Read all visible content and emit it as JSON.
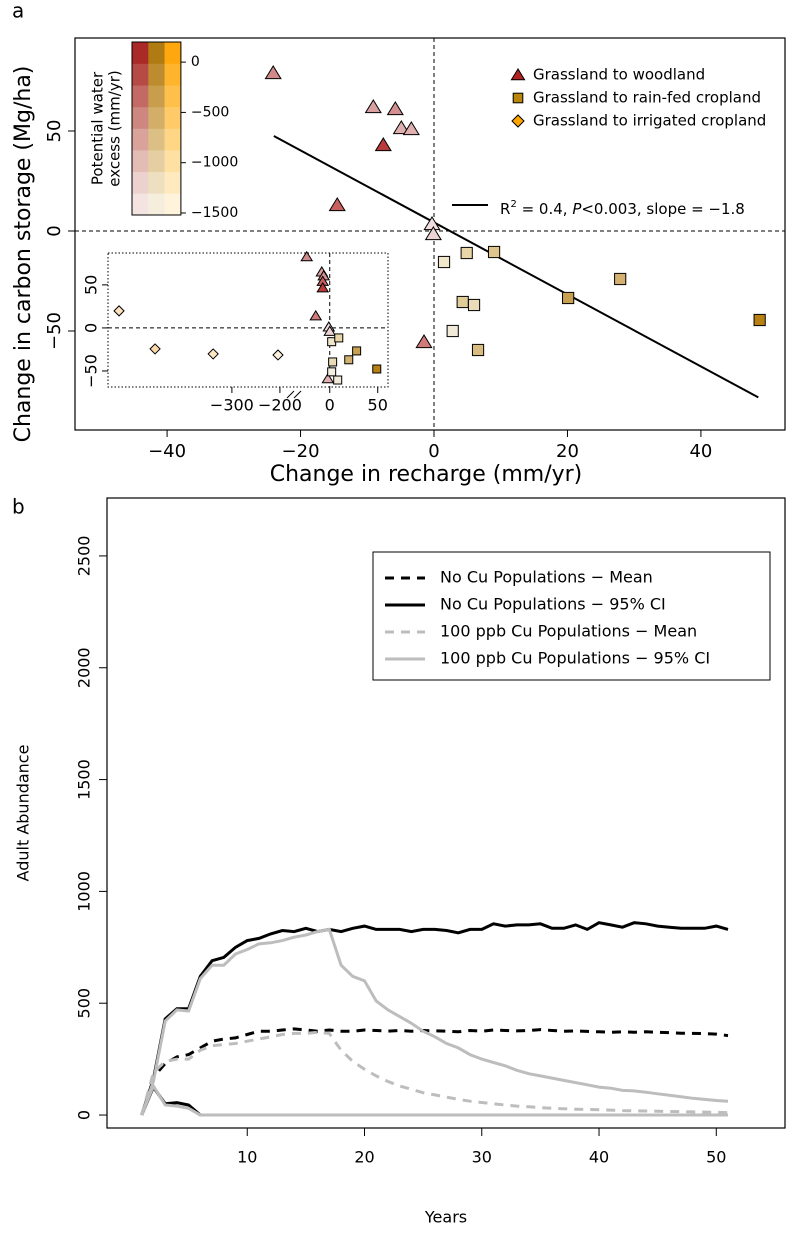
{
  "chart_data": [
    {
      "type": "scatter",
      "panel_label": "a",
      "xlabel": "Change in recharge (mm/yr)",
      "ylabel": "Change in carbon storage (Mg/ha)",
      "xlim": [
        -53.8,
        52.6
      ],
      "ylim": [
        -99.5,
        96.5
      ],
      "xticks": [
        {
          "value": -40,
          "label": "−40"
        },
        {
          "value": -20,
          "label": "−20"
        },
        0,
        20,
        40
      ],
      "yticks": [
        {
          "value": -50,
          "label": "−50"
        },
        0,
        50
      ],
      "zero_lines": true,
      "legend_position": "top-right",
      "series": [
        {
          "name": "Grassland to woodland",
          "marker": "triangle",
          "color": "#b22222",
          "x": [
            -24.1,
            -9.1,
            -5.8,
            -4.9,
            -3.4,
            -7.6,
            -14.5,
            -0.3,
            -0.1,
            -1.5
          ],
          "y": [
            79,
            62,
            61,
            51.5,
            51,
            43,
            13,
            3.5,
            -1.5,
            -55.5
          ],
          "colors": [
            "#d08a8a",
            "#d8a0a0",
            "#d49090",
            "#e0b0b0",
            "#e0b0b0",
            "#b83a3a",
            "#c86060",
            "#f0dede",
            "#ecd4d4",
            "#d07a7a"
          ]
        },
        {
          "name": "Grassland to rain-fed cropland",
          "marker": "square",
          "color": "#b8860b",
          "x": [
            1.5,
            4.9,
            9,
            4.3,
            6,
            2.8,
            6.6,
            20.1,
            27.9,
            48.8
          ],
          "y": [
            -15.5,
            -11,
            -10.5,
            -35.5,
            -37,
            -50,
            -59.5,
            -33.5,
            -24,
            -44.5
          ],
          "colors": [
            "#f0e6cc",
            "#e8d6a8",
            "#dcc48a",
            "#e0cc98",
            "#eadcb8",
            "#f2ead8",
            "#d8bc80",
            "#c8a050",
            "#d4b070",
            "#b88010"
          ]
        },
        {
          "name": "Grassland to irrigated cropland",
          "marker": "diamond",
          "color": "#ffa500",
          "x": [],
          "y": [],
          "colors": []
        }
      ],
      "fit": {
        "x": [
          -24,
          48.6
        ],
        "y": [
          47.5,
          -83.2
        ],
        "label_parts": [
          {
            "text": "R"
          },
          {
            "text": "2",
            "style": "sup"
          },
          {
            "text": " = 0.4, "
          },
          {
            "text": "P",
            "style": "italic"
          },
          {
            "text": "<0.003, slope = −1.8"
          }
        ]
      },
      "colorbar": {
        "title": [
          "Potential water",
          "excess (mm/yr)"
        ],
        "lim": [
          -1520,
          200
        ],
        "ticks": [
          0,
          {
            "value": -500,
            "label": "−500"
          },
          {
            "value": -1000,
            "label": "−1000"
          },
          {
            "value": -1500,
            "label": "−1500"
          }
        ],
        "columns": [
          [
            "#f3e4e1",
            "#ecd2ce",
            "#e3bcb6",
            "#d9a39c",
            "#cd8780",
            "#c26a63",
            "#b64b45",
            "#aa2a27"
          ],
          [
            "#f6eedd",
            "#eedfc0",
            "#e5cfa2",
            "#dcbf85",
            "#d2ae68",
            "#c89d4b",
            "#bd8c2e",
            "#b07b12"
          ],
          [
            "#fff3dc",
            "#ffeac0",
            "#ffe0a3",
            "#ffd686",
            "#ffcb69",
            "#ffc04b",
            "#ffb42d",
            "#ffa70f"
          ]
        ]
      },
      "inset": {
        "xlim": [
          [
            -558,
            -179
          ],
          [
            -31,
            60.7
          ]
        ],
        "ylim": [
          -68.6,
          87
        ],
        "xticks": [
          {
            "value": -300,
            "label": "−300"
          },
          {
            "value": -200,
            "label": "−200"
          },
          0,
          50
        ],
        "yticks": [
          {
            "value": -50,
            "label": "−50"
          },
          0,
          50
        ],
        "series": [
          {
            "marker": "diamond",
            "x": [
              -535,
              -460,
              -339,
              -204
            ],
            "y": [
              19.8,
              -24.4,
              -30.2,
              -31.4
            ],
            "colors": [
              "#fde2bd",
              "#fbd9a8",
              "#fde6c6",
              "#fdf0dc"
            ]
          },
          {
            "marker": "triangle",
            "x": [
              -24,
              -8.3,
              -6.3,
              -7.3,
              -7.3,
              -14.6,
              -1,
              0,
              -2
            ],
            "y": [
              82.6,
              65,
              60.5,
              54,
              46.5,
              14,
              1,
              -4,
              -59
            ],
            "colors": [
              "#d08a8a",
              "#d8a0a0",
              "#d49090",
              "#c86060",
              "#b83a3a",
              "#d07a7a",
              "#f0dede",
              "#ecd4d4",
              "#e0b0b0"
            ]
          },
          {
            "marker": "square",
            "x": [
              2,
              9.4,
              28,
              19.8,
              3,
              8.3,
              49,
              2
            ],
            "y": [
              -16,
              -11.6,
              -26.7,
              -37,
              -39.5,
              -60.5,
              -47.7,
              -51
            ],
            "colors": [
              "#f0e6cc",
              "#e8d6a8",
              "#c8a050",
              "#d4b070",
              "#eadcb8",
              "#f2ead8",
              "#b88010",
              "#f5efe2"
            ]
          }
        ]
      }
    },
    {
      "type": "line",
      "panel_label": "b",
      "xlabel": "Years",
      "ylabel": "Adult Abundance",
      "xlim": [
        -1.96,
        55.86
      ],
      "ylim": [
        -58,
        2759
      ],
      "xticks": [
        10,
        20,
        30,
        40,
        50
      ],
      "yticks": [
        0,
        500,
        1000,
        1500,
        2000,
        2500
      ],
      "legend_position": "top-right",
      "x": [
        1,
        2,
        3,
        4,
        5,
        6,
        7,
        8,
        9,
        10,
        11,
        12,
        13,
        14,
        15,
        16,
        17,
        18,
        19,
        20,
        21,
        22,
        23,
        24,
        25,
        26,
        27,
        28,
        29,
        30,
        31,
        32,
        33,
        34,
        35,
        36,
        37,
        38,
        39,
        40,
        41,
        42,
        43,
        44,
        45,
        46,
        47,
        48,
        49,
        50,
        51
      ],
      "series": [
        {
          "name": "No Cu Populations − Mean",
          "color": "#000000",
          "dash": true,
          "values": [
            0,
            170,
            230,
            260,
            270,
            300,
            330,
            340,
            345,
            360,
            375,
            375,
            380,
            385,
            380,
            375,
            380,
            375,
            375,
            380,
            378,
            375,
            378,
            375,
            378,
            376,
            375,
            372,
            378,
            375,
            380,
            378,
            376,
            378,
            382,
            378,
            375,
            376,
            374,
            372,
            370,
            372,
            370,
            372,
            370,
            368,
            366,
            365,
            364,
            362,
            355
          ]
        },
        {
          "name": "No Cu Populations − 95% CI",
          "color": "#000000",
          "dash": false,
          "values": [
            0,
            160,
            430,
            475,
            475,
            620,
            690,
            705,
            750,
            780,
            790,
            810,
            825,
            820,
            835,
            820,
            830,
            820,
            835,
            845,
            830,
            830,
            830,
            820,
            830,
            830,
            825,
            815,
            830,
            830,
            855,
            845,
            850,
            850,
            855,
            835,
            835,
            850,
            830,
            860,
            850,
            840,
            860,
            855,
            845,
            840,
            835,
            835,
            835,
            845,
            830
          ],
          "lower": [
            0,
            125,
            50,
            55,
            45,
            0,
            0,
            0,
            0,
            0,
            0,
            0,
            0,
            0,
            0,
            0,
            0,
            0,
            0,
            0,
            0,
            0,
            0,
            0,
            0,
            0,
            0,
            0,
            0,
            0,
            0,
            0,
            0,
            0,
            0,
            0,
            0,
            0,
            0,
            0,
            0,
            0,
            0,
            0,
            0,
            0,
            0,
            0,
            0,
            0,
            0
          ]
        },
        {
          "name": "100 ppb Cu Populations − Mean",
          "color": "#bdbdbd",
          "dash": true,
          "values": [
            0,
            190,
            240,
            250,
            250,
            290,
            310,
            315,
            320,
            330,
            340,
            350,
            360,
            365,
            365,
            370,
            365,
            290,
            240,
            205,
            175,
            150,
            130,
            115,
            100,
            90,
            80,
            70,
            62,
            56,
            50,
            45,
            40,
            37,
            33,
            30,
            28,
            26,
            25,
            24,
            22,
            20,
            19,
            18,
            17,
            16,
            15,
            14,
            13,
            12,
            11
          ]
        },
        {
          "name": "100 ppb Cu Populations − 95% CI",
          "color": "#bdbdbd",
          "dash": false,
          "values": [
            0,
            150,
            420,
            470,
            465,
            610,
            670,
            670,
            720,
            740,
            765,
            770,
            780,
            795,
            805,
            820,
            830,
            670,
            620,
            600,
            510,
            470,
            440,
            410,
            375,
            350,
            320,
            300,
            270,
            250,
            235,
            220,
            200,
            185,
            175,
            165,
            155,
            145,
            135,
            125,
            120,
            110,
            108,
            102,
            95,
            88,
            82,
            75,
            70,
            65,
            62
          ],
          "lower": [
            0,
            130,
            45,
            40,
            30,
            0,
            0,
            0,
            0,
            0,
            0,
            0,
            0,
            0,
            0,
            0,
            0,
            0,
            0,
            0,
            0,
            0,
            0,
            0,
            0,
            0,
            0,
            0,
            0,
            0,
            0,
            0,
            0,
            0,
            0,
            0,
            0,
            0,
            0,
            0,
            0,
            0,
            0,
            0,
            0,
            0,
            0,
            0,
            0,
            0,
            0
          ]
        }
      ]
    }
  ]
}
